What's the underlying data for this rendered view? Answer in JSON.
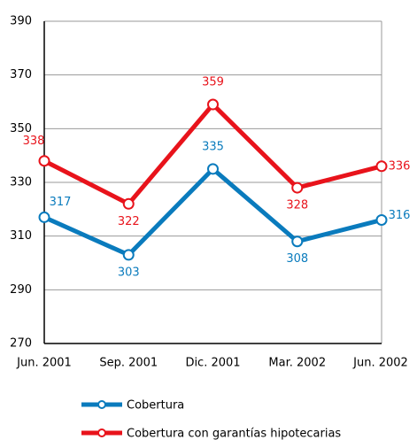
{
  "chart_data": {
    "type": "line",
    "categories": [
      "Jun. 2001",
      "Sep. 2001",
      "Dic. 2001",
      "Mar. 2002",
      "Jun. 2002"
    ],
    "series": [
      {
        "name": "Cobertura",
        "color": "#0a7bbd",
        "values": [
          317,
          303,
          335,
          308,
          316
        ]
      },
      {
        "name": "Cobertura con garantías hipotecarias",
        "color": "#e8131b",
        "values": [
          338,
          322,
          359,
          328,
          336
        ]
      }
    ],
    "ylim": [
      270,
      390
    ],
    "yticks": [
      270,
      290,
      310,
      330,
      350,
      370,
      390
    ],
    "grid": true
  }
}
